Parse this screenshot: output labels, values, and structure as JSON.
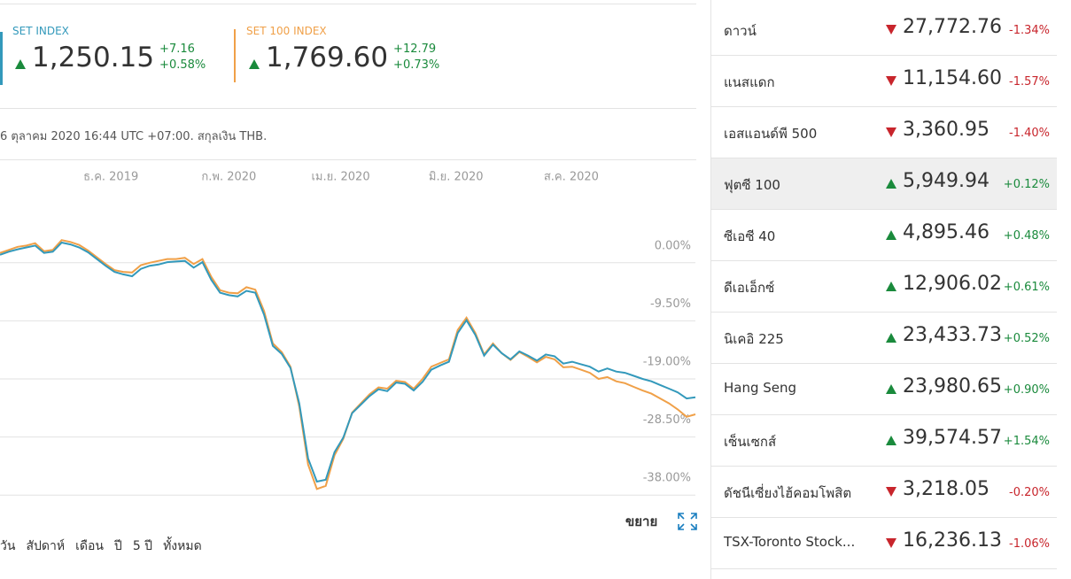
{
  "header": {
    "indices": [
      {
        "value": "1,250.15",
        "change": "+7.16",
        "percent": "+0.58%",
        "direction": "up"
      },
      {
        "value": "1,769.60",
        "change": "+12.79",
        "percent": "+0.73%",
        "direction": "up"
      }
    ]
  },
  "date_note": "6 ตุลาคม 2020 16:44 UTC +07:00. สกุลเงิน THB.",
  "chart_data": {
    "type": "line",
    "series": [
      {
        "name": "SET INDEX",
        "color": "#3399bb",
        "values": [
          1.3,
          1.8,
          2.2,
          2.5,
          2.8,
          1.6,
          1.8,
          3.3,
          3.0,
          2.5,
          1.7,
          0.6,
          -0.5,
          -1.5,
          -1.9,
          -2.2,
          -1.0,
          -0.5,
          -0.3,
          0.1,
          0.2,
          0.3,
          -0.8,
          0.1,
          -2.8,
          -4.9,
          -5.3,
          -5.5,
          -4.6,
          -4.9,
          -8.5,
          -13.6,
          -14.9,
          -17.2,
          -23,
          -32,
          -35.8,
          -35.5,
          -31,
          -28.6,
          -24.6,
          -23.2,
          -21.8,
          -20.7,
          -21,
          -19.6,
          -19.8,
          -20.9,
          -19.5,
          -17.5,
          -16.8,
          -16.2,
          -11.5,
          -9.4,
          -11.8,
          -15.2,
          -13.4,
          -14.8,
          -15.8,
          -14.5,
          -15.2,
          -16.0,
          -15.0,
          -15.3,
          -16.5,
          -16.2,
          -16.6,
          -17.0,
          -17.8,
          -17.3,
          -17.8,
          -18.0,
          -18.5,
          -19.0,
          -19.4,
          -20.0,
          -20.6,
          -21.2,
          -22.2,
          -22.0
        ]
      },
      {
        "name": "SET 100 INDEX",
        "color": "#f0a048",
        "values": [
          1.6,
          2.1,
          2.6,
          2.8,
          3.2,
          1.9,
          2.1,
          3.7,
          3.4,
          2.9,
          2.0,
          0.9,
          -0.2,
          -1.2,
          -1.5,
          -1.6,
          -0.4,
          0.0,
          0.3,
          0.6,
          0.6,
          0.8,
          -0.2,
          0.6,
          -2.3,
          -4.5,
          -4.9,
          -5.0,
          -4.0,
          -4.4,
          -7.9,
          -13.2,
          -14.6,
          -17.0,
          -23.5,
          -33,
          -37.0,
          -36.5,
          -31.5,
          -28.8,
          -24.5,
          -23.0,
          -21.5,
          -20.4,
          -20.6,
          -19.3,
          -19.5,
          -20.6,
          -19.0,
          -17.0,
          -16.4,
          -15.8,
          -11.0,
          -9.0,
          -11.5,
          -15.0,
          -13.2,
          -14.8,
          -15.9,
          -14.6,
          -15.4,
          -16.3,
          -15.4,
          -15.8,
          -17.1,
          -17.0,
          -17.5,
          -18.0,
          -19.0,
          -18.7,
          -19.4,
          -19.7,
          -20.3,
          -20.9,
          -21.4,
          -22.2,
          -23.0,
          -24.0,
          -25.2,
          -24.8
        ]
      }
    ],
    "xlim": [
      0,
      79
    ],
    "xticks": [
      {
        "value": 12.6,
        "label": "ธ.ค. 2019"
      },
      {
        "value": 26,
        "label": "ก.พ. 2020"
      },
      {
        "value": 38.7,
        "label": "เม.ย. 2020"
      },
      {
        "value": 51.8,
        "label": "มิ.ย. 2020"
      },
      {
        "value": 64.9,
        "label": "ส.ค. 2020"
      }
    ],
    "ylim": [
      -40,
      13
    ],
    "yticks": [
      {
        "value": 0,
        "label": "0.00%"
      },
      {
        "value": -9.5,
        "label": "-9.50%"
      },
      {
        "value": -19,
        "label": "-19.00%"
      },
      {
        "value": -28.5,
        "label": "-28.50%"
      },
      {
        "value": -38,
        "label": "-38.00%"
      }
    ],
    "grid": true
  },
  "expand_label": "ขยาย",
  "ranges": [
    "วัน",
    "สัปดาห์",
    "เดือน",
    "ปี",
    "5 ปี",
    "ทั้งหมด"
  ],
  "market_list": {
    "selected_index": 3,
    "items": [
      {
        "name": "ดาวน์",
        "direction": "down",
        "value": "27,772.76",
        "change": "-1.34%"
      },
      {
        "name": "แนสแดก",
        "direction": "down",
        "value": "11,154.60",
        "change": "-1.57%"
      },
      {
        "name": "เอสแอนด์พี 500",
        "direction": "down",
        "value": "3,360.95",
        "change": "-1.40%"
      },
      {
        "name": "ฟุตซี 100",
        "direction": "up",
        "value": "5,949.94",
        "change": "+0.12%"
      },
      {
        "name": "ซีเอซี 40",
        "direction": "up",
        "value": "4,895.46",
        "change": "+0.48%"
      },
      {
        "name": "ดีเอเอ็กซ์",
        "direction": "up",
        "value": "12,906.02",
        "change": "+0.61%"
      },
      {
        "name": "นิเคอิ 225",
        "direction": "up",
        "value": "23,433.73",
        "change": "+0.52%"
      },
      {
        "name": "Hang Seng",
        "direction": "up",
        "value": "23,980.65",
        "change": "+0.90%"
      },
      {
        "name": "เซ็นเซกส์",
        "direction": "up",
        "value": "39,574.57",
        "change": "+1.54%"
      },
      {
        "name": "ดัชนีเซี่ยงไฮ้คอมโพสิต",
        "direction": "down",
        "value": "3,218.05",
        "change": "-0.20%"
      },
      {
        "name": "TSX-Toronto Stock...",
        "direction": "down",
        "value": "16,236.13",
        "change": "-1.06%"
      }
    ]
  }
}
